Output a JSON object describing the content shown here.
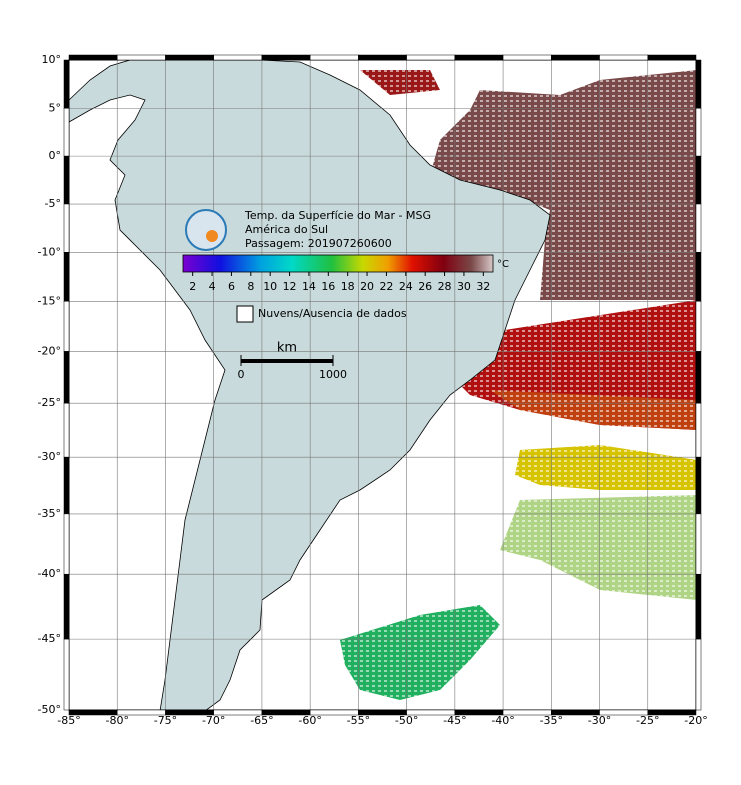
{
  "map": {
    "lon_range": [
      -85,
      -20
    ],
    "lat_range": [
      -50,
      10
    ],
    "lon_ticks": [
      {
        "value": -85,
        "label": "-85°"
      },
      {
        "value": -80,
        "label": "-80°"
      },
      {
        "value": -75,
        "label": "-75°"
      },
      {
        "value": -70,
        "label": "-70°"
      },
      {
        "value": -65,
        "label": "-65°"
      },
      {
        "value": -60,
        "label": "-60°"
      },
      {
        "value": -55,
        "label": "-55°"
      },
      {
        "value": -50,
        "label": "-50°"
      },
      {
        "value": -45,
        "label": "-45°"
      },
      {
        "value": -40,
        "label": "-40°"
      },
      {
        "value": -35,
        "label": "-35°"
      },
      {
        "value": -30,
        "label": "-30°"
      },
      {
        "value": -25,
        "label": "-25°"
      },
      {
        "value": -20,
        "label": "-20°"
      }
    ],
    "lat_ticks": [
      {
        "value": 10,
        "label": "10°"
      },
      {
        "value": 5,
        "label": "5°"
      },
      {
        "value": 0,
        "label": "0°"
      },
      {
        "value": -5,
        "label": "-5°"
      },
      {
        "value": -10,
        "label": "-10°"
      },
      {
        "value": -15,
        "label": "-15°"
      },
      {
        "value": -20,
        "label": "-20°"
      },
      {
        "value": -25,
        "label": "-25°"
      },
      {
        "value": -30,
        "label": "-30°"
      },
      {
        "value": -35,
        "label": "-35°"
      },
      {
        "value": -40,
        "label": "-40°"
      },
      {
        "value": -45,
        "label": "-45°"
      },
      {
        "value": -50,
        "label": "-50°"
      }
    ]
  },
  "legend": {
    "title_lines": [
      "Temp. da Superfície do Mar - MSG",
      "América do Sul",
      "Passagem: 201907260600"
    ],
    "colorbar": {
      "range": [
        1,
        33
      ],
      "unit": "°C",
      "ticks": [
        2,
        4,
        6,
        8,
        10,
        12,
        14,
        16,
        18,
        20,
        22,
        24,
        26,
        28,
        30,
        32
      ]
    },
    "cloud_label": "Nuvens/Ausencia de dados"
  },
  "scale_bar": {
    "unit": "km",
    "ticks": [
      0,
      1000
    ]
  }
}
